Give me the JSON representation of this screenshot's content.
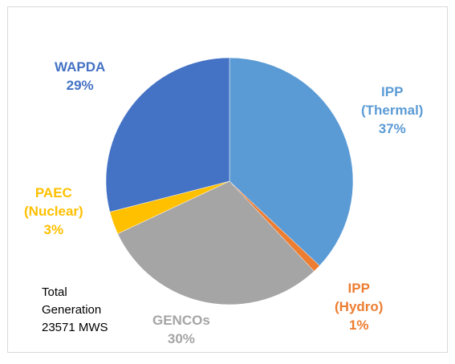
{
  "chart_data": {
    "type": "pie",
    "slices": [
      {
        "label": "IPP (Thermal)",
        "lines": [
          "IPP",
          "(Thermal)"
        ],
        "percent_text": "37%",
        "value": 37,
        "color": "#5b9bd5",
        "label_color": "#5b9bd5"
      },
      {
        "label": "IPP (Hydro)",
        "lines": [
          "IPP",
          "(Hydro)"
        ],
        "percent_text": "1%",
        "value": 1,
        "color": "#ed7d31",
        "label_color": "#ed7d31"
      },
      {
        "label": "GENCOs",
        "lines": [
          "GENCOs"
        ],
        "percent_text": "30%",
        "value": 30,
        "color": "#a5a5a5",
        "label_color": "#a5a5a5"
      },
      {
        "label": "PAEC (Nuclear)",
        "lines": [
          "PAEC",
          "(Nuclear)"
        ],
        "percent_text": "3%",
        "value": 3,
        "color": "#ffc000",
        "label_color": "#ffc000"
      },
      {
        "label": "WAPDA",
        "lines": [
          "WAPDA"
        ],
        "percent_text": "29%",
        "value": 29,
        "color": "#4472c4",
        "label_color": "#4472c4"
      }
    ],
    "annotation": [
      "Total",
      "Generation",
      "23571 MWS"
    ]
  }
}
